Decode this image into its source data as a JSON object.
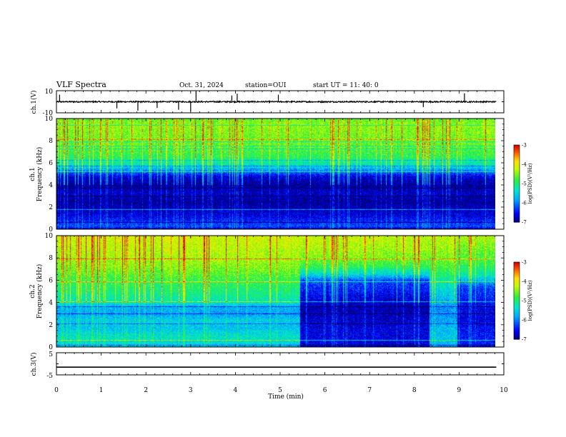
{
  "header": {
    "title": "VLF Spectra",
    "date": "Oct. 31, 2024",
    "station": "station=OUI",
    "start": "start  UT =  11: 40: 0"
  },
  "chart_data": [
    {
      "type": "line",
      "id": "ch1-waveform",
      "ylabel": "ch.1(V)",
      "ylim": [
        -10,
        10
      ],
      "yticks": [
        "10",
        "-10"
      ],
      "xlim": [
        0,
        10
      ],
      "baseline": 0,
      "spikes": [
        {
          "x": 0.07,
          "y": 1.6
        },
        {
          "x": 1.35,
          "y": -1.5
        },
        {
          "x": 1.82,
          "y": -2.0
        },
        {
          "x": 2.73,
          "y": -1.8
        },
        {
          "x": 3.0,
          "y": -2.2
        },
        {
          "x": 3.12,
          "y": 2.4
        },
        {
          "x": 4.04,
          "y": 1.8
        },
        {
          "x": 4.96,
          "y": 1.6
        },
        {
          "x": 9.12,
          "y": 1.9
        },
        {
          "x": 8.2,
          "y": -1.2
        },
        {
          "x": 2.25,
          "y": -1.4
        },
        {
          "x": 3.92,
          "y": 1.4
        }
      ]
    },
    {
      "type": "heatmap",
      "id": "ch1-spectrogram",
      "ylabel": "ch.1",
      "ylabel2": "Frequency (kHz)",
      "ylim": [
        0,
        10
      ],
      "yticks": [
        "0",
        "2",
        "4",
        "6",
        "8",
        "10"
      ],
      "xlim": [
        0,
        9.83
      ],
      "colorbar": {
        "label": "log(PSD)(V²/Hz)",
        "range": [
          -7,
          -3
        ],
        "ticks": [
          "-3",
          "-4",
          "-5",
          "-6",
          "-7"
        ]
      },
      "segments": [
        {
          "x0": 0,
          "x1": 9.83,
          "profile": [
            [
              0,
              -6.8
            ],
            [
              0.3,
              -6.2
            ],
            [
              1.2,
              -6.6
            ],
            [
              2.5,
              -6.9
            ],
            [
              3.3,
              -6.7
            ],
            [
              4.0,
              -6.9
            ],
            [
              4.8,
              -6.6
            ],
            [
              5.2,
              -6.1
            ],
            [
              5.8,
              -5.3
            ],
            [
              6.5,
              -4.9
            ],
            [
              7.5,
              -4.6
            ],
            [
              8.5,
              -4.5
            ],
            [
              9.5,
              -4.4
            ],
            [
              10,
              -4.6
            ]
          ]
        }
      ]
    },
    {
      "type": "heatmap",
      "id": "ch2-spectrogram",
      "ylabel": "ch.2",
      "ylabel2": "Frequency (kHz)",
      "ylim": [
        0,
        10
      ],
      "yticks": [
        "0",
        "2",
        "4",
        "6",
        "8",
        "10"
      ],
      "xlim": [
        0,
        9.83
      ],
      "colorbar": {
        "label": "log(PSD)(V²/Hz)",
        "range": [
          -7,
          -3
        ],
        "ticks": [
          "-3",
          "-4",
          "-5",
          "-6",
          "-7"
        ]
      },
      "segments": [
        {
          "x0": 0,
          "x1": 5.45,
          "profile": [
            [
              0,
              -5.6
            ],
            [
              0.5,
              -5.4
            ],
            [
              1.0,
              -5.3
            ],
            [
              1.7,
              -5.6
            ],
            [
              2.4,
              -5.5
            ],
            [
              3.0,
              -5.8
            ],
            [
              3.6,
              -5.7
            ],
            [
              4.2,
              -5.2
            ],
            [
              5.0,
              -5.0
            ],
            [
              6.0,
              -4.8
            ],
            [
              7.0,
              -4.5
            ],
            [
              8.0,
              -4.3
            ],
            [
              9.0,
              -4.2
            ],
            [
              10,
              -4.1
            ]
          ]
        },
        {
          "x0": 5.45,
          "x1": 8.35,
          "profile": [
            [
              0,
              -6.7
            ],
            [
              0.5,
              -6.6
            ],
            [
              1.5,
              -6.6
            ],
            [
              2.5,
              -6.7
            ],
            [
              3.5,
              -6.8
            ],
            [
              4.5,
              -6.6
            ],
            [
              5.2,
              -6.4
            ],
            [
              6.0,
              -6.2
            ],
            [
              6.6,
              -5.4
            ],
            [
              7.2,
              -4.9
            ],
            [
              8.0,
              -4.5
            ],
            [
              9.0,
              -4.3
            ],
            [
              10,
              -4.2
            ]
          ]
        },
        {
          "x0": 8.35,
          "x1": 8.98,
          "profile": [
            [
              0,
              -5.8
            ],
            [
              0.5,
              -5.6
            ],
            [
              1.5,
              -5.6
            ],
            [
              2.5,
              -5.8
            ],
            [
              3.5,
              -5.9
            ],
            [
              4.5,
              -5.6
            ],
            [
              5.5,
              -5.3
            ],
            [
              6.5,
              -5.0
            ],
            [
              7.5,
              -4.6
            ],
            [
              8.5,
              -4.4
            ],
            [
              10,
              -4.2
            ]
          ]
        },
        {
          "x0": 8.98,
          "x1": 9.83,
          "profile": [
            [
              0,
              -6.6
            ],
            [
              0.5,
              -6.4
            ],
            [
              1.5,
              -6.5
            ],
            [
              2.5,
              -6.6
            ],
            [
              3.5,
              -6.6
            ],
            [
              4.5,
              -6.4
            ],
            [
              5.5,
              -6.2
            ],
            [
              6.5,
              -5.2
            ],
            [
              7.5,
              -4.8
            ],
            [
              8.5,
              -4.6
            ],
            [
              10,
              -4.3
            ]
          ]
        }
      ]
    },
    {
      "type": "line",
      "id": "ch3-waveform",
      "ylabel": "ch.3(V)",
      "ylim": [
        -5,
        5
      ],
      "yticks": [
        "5",
        "-5"
      ],
      "xlim": [
        0,
        10
      ],
      "baseline": -1.5
    }
  ],
  "xaxis": {
    "label": "Time (min)",
    "ticks": [
      "0",
      "1",
      "2",
      "3",
      "4",
      "5",
      "6",
      "7",
      "8",
      "9",
      "10"
    ]
  }
}
